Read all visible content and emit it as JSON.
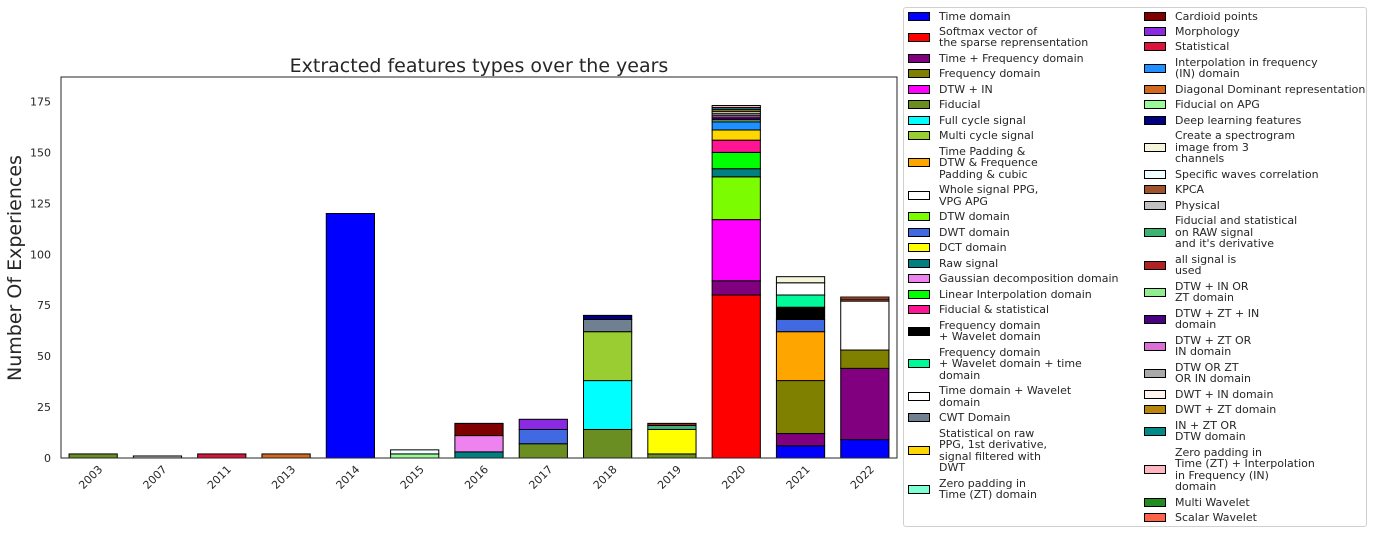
{
  "chart_data": {
    "type": "bar",
    "stacked": true,
    "title": "Extracted features types over the years",
    "xlabel": "",
    "ylabel": "Number Of Experiences",
    "ylim": [
      0,
      187
    ],
    "yticks": [
      0,
      25,
      50,
      75,
      100,
      125,
      150,
      175
    ],
    "categories": [
      "2003",
      "2007",
      "2011",
      "2013",
      "2014",
      "2015",
      "2016",
      "2017",
      "2018",
      "2019",
      "2020",
      "2021",
      "2022"
    ],
    "grid": false,
    "legend_position": "right",
    "series": [
      {
        "name": "Time domain",
        "color": "#0000ff",
        "values": [
          0,
          0,
          0,
          0,
          120,
          0,
          0,
          0,
          0,
          0,
          0,
          6,
          9
        ]
      },
      {
        "name": "Softmax vector of\nthe sparse reprensentation",
        "color": "#ff0000",
        "values": [
          0,
          0,
          0,
          0,
          0,
          0,
          0,
          0,
          0,
          0,
          80,
          0,
          0
        ]
      },
      {
        "name": "Time + Frequency domain",
        "color": "#800080",
        "values": [
          0,
          0,
          0,
          0,
          0,
          0,
          0,
          0,
          0,
          0,
          7,
          6,
          35
        ]
      },
      {
        "name": "Frequency domain",
        "color": "#808000",
        "values": [
          0,
          0,
          0,
          0,
          0,
          0,
          0,
          0,
          0,
          0,
          0,
          26,
          9
        ]
      },
      {
        "name": "DTW + IN",
        "color": "#ff00ff",
        "values": [
          0,
          0,
          0,
          0,
          0,
          0,
          0,
          0,
          0,
          0,
          30,
          0,
          0
        ]
      },
      {
        "name": "Fiducial",
        "color": "#6b8e23",
        "values": [
          2,
          0,
          0,
          0,
          0,
          0,
          0,
          7,
          14,
          2,
          0,
          0,
          0
        ]
      },
      {
        "name": "Full cycle signal",
        "color": "#00ffff",
        "values": [
          0,
          0,
          0,
          0,
          0,
          0,
          0,
          0,
          24,
          0,
          0,
          0,
          0
        ]
      },
      {
        "name": "Multi cycle signal",
        "color": "#9acd32",
        "values": [
          0,
          0,
          0,
          0,
          0,
          0,
          0,
          0,
          24,
          0,
          0,
          0,
          0
        ]
      },
      {
        "name": "Time Padding &\nDTW & Frequence\nPadding & cubic",
        "color": "#ffa500",
        "values": [
          0,
          0,
          0,
          0,
          0,
          0,
          0,
          0,
          0,
          0,
          0,
          24,
          0
        ]
      },
      {
        "name": "Whole signal PPG,\nVPG APG",
        "color": "#ffffff",
        "values": [
          0,
          0,
          0,
          0,
          0,
          0,
          0,
          0,
          0,
          0,
          0,
          0,
          24
        ]
      },
      {
        "name": "DTW domain",
        "color": "#7cfc00",
        "values": [
          0,
          0,
          0,
          0,
          0,
          0,
          0,
          0,
          0,
          0,
          21,
          0,
          0
        ]
      },
      {
        "name": "DWT domain",
        "color": "#4169e1",
        "values": [
          0,
          0,
          0,
          0,
          0,
          0,
          0,
          7,
          0,
          0,
          0,
          6,
          0
        ]
      },
      {
        "name": "DCT domain",
        "color": "#ffff00",
        "values": [
          0,
          0,
          0,
          0,
          0,
          0,
          0,
          0,
          0,
          12,
          0,
          0,
          0
        ]
      },
      {
        "name": "Raw signal",
        "color": "#008080",
        "values": [
          0,
          0,
          0,
          0,
          0,
          0,
          3,
          0,
          0,
          0,
          4,
          0,
          0
        ]
      },
      {
        "name": "Gaussian decomposition domain",
        "color": "#ee82ee",
        "values": [
          0,
          0,
          0,
          0,
          0,
          0,
          8,
          0,
          0,
          0,
          0,
          0,
          0
        ]
      },
      {
        "name": "Linear Interpolation domain",
        "color": "#00ff00",
        "values": [
          0,
          0,
          0,
          0,
          0,
          0,
          0,
          0,
          0,
          0,
          8,
          0,
          0
        ]
      },
      {
        "name": "Fiducial & statistical",
        "color": "#ff1493",
        "values": [
          0,
          0,
          0,
          0,
          0,
          0,
          0,
          0,
          0,
          0,
          6,
          0,
          0
        ]
      },
      {
        "name": "Frequency  domain\n+ Wavelet domain",
        "color": "#000000",
        "values": [
          0,
          0,
          0,
          0,
          0,
          0,
          0,
          0,
          0,
          0,
          0,
          6,
          0
        ]
      },
      {
        "name": "Frequency  domain\n+ Wavelet domain + time\ndomain",
        "color": "#00fa9a",
        "values": [
          0,
          0,
          0,
          0,
          0,
          0,
          0,
          0,
          0,
          0,
          0,
          6,
          0
        ]
      },
      {
        "name": "Time domain + Wavelet\ndomain",
        "color": "#ffffff",
        "values": [
          0,
          0,
          0,
          0,
          0,
          0,
          0,
          0,
          0,
          0,
          0,
          6,
          0
        ]
      },
      {
        "name": "CWT Domain",
        "color": "#708090",
        "values": [
          0,
          0,
          0,
          0,
          0,
          0,
          0,
          0,
          6,
          0,
          0,
          0,
          0
        ]
      },
      {
        "name": "Statistical on raw\nPPG, 1st derivative,\nsignal filtered with\nDWT",
        "color": "#ffd700",
        "values": [
          0,
          0,
          0,
          0,
          0,
          0,
          0,
          0,
          0,
          0,
          5,
          0,
          0
        ]
      },
      {
        "name": "Zero padding in\nTime (ZT) domain",
        "color": "#7fffd4",
        "values": [
          0,
          0,
          0,
          0,
          0,
          0,
          0,
          0,
          0,
          0,
          0,
          0,
          0
        ]
      },
      {
        "name": "Cardioid points",
        "color": "#800000",
        "values": [
          0,
          0,
          0,
          0,
          0,
          0,
          6,
          0,
          0,
          0,
          0,
          0,
          0
        ]
      },
      {
        "name": "Morphology",
        "color": "#8a2be2",
        "values": [
          0,
          0,
          0,
          0,
          0,
          0,
          0,
          5,
          0,
          0,
          0,
          0,
          0
        ]
      },
      {
        "name": "Statistical",
        "color": "#dc143c",
        "values": [
          0,
          0,
          2,
          0,
          0,
          0,
          0,
          0,
          0,
          0,
          0,
          0,
          0
        ]
      },
      {
        "name": "Interpolation in frequency\n(IN) domain",
        "color": "#1e90ff",
        "values": [
          0,
          0,
          0,
          0,
          0,
          0,
          0,
          0,
          0,
          0,
          4,
          0,
          0
        ]
      },
      {
        "name": "Diagonal Dominant representation",
        "color": "#d2691e",
        "values": [
          0,
          0,
          0,
          2,
          0,
          0,
          0,
          0,
          0,
          0,
          0,
          0,
          0
        ]
      },
      {
        "name": "Fiducial on APG",
        "color": "#98fb98",
        "values": [
          0,
          0,
          0,
          0,
          0,
          2,
          0,
          0,
          0,
          0,
          0,
          0,
          0
        ]
      },
      {
        "name": "Deep learning features",
        "color": "#000080",
        "values": [
          0,
          0,
          0,
          0,
          0,
          0,
          0,
          0,
          2,
          0,
          0,
          0,
          0
        ]
      },
      {
        "name": "Create a spectrogram\nimage from 3\nchannels",
        "color": "#f5f5dc",
        "values": [
          0,
          0,
          0,
          0,
          0,
          0,
          0,
          0,
          0,
          0,
          0,
          3,
          0
        ]
      },
      {
        "name": "Specific waves correlation",
        "color": "#f0ffff",
        "values": [
          0,
          0,
          0,
          0,
          0,
          2,
          0,
          0,
          0,
          0,
          0,
          0,
          0
        ]
      },
      {
        "name": "KPCA",
        "color": "#a0522d",
        "values": [
          0,
          0,
          0,
          0,
          0,
          0,
          0,
          0,
          0,
          0,
          0,
          0,
          1
        ]
      },
      {
        "name": "Physical",
        "color": "#c0c0c0",
        "values": [
          0,
          1,
          0,
          0,
          0,
          0,
          0,
          0,
          0,
          0,
          0,
          0,
          0
        ]
      },
      {
        "name": "Fiducial and statistical\non RAW signal\nand it's derivative",
        "color": "#3cb371",
        "values": [
          0,
          0,
          0,
          0,
          0,
          0,
          0,
          0,
          0,
          2,
          0,
          0,
          0
        ]
      },
      {
        "name": "all signal is\nused",
        "color": "#b22222",
        "values": [
          0,
          0,
          0,
          0,
          0,
          0,
          0,
          0,
          0,
          1,
          0,
          0,
          0
        ]
      },
      {
        "name": "DTW + IN OR\nZT domain",
        "color": "#90ee90",
        "values": [
          0,
          0,
          0,
          0,
          0,
          0,
          0,
          0,
          0,
          0,
          1,
          0,
          0
        ]
      },
      {
        "name": "DTW + ZT + IN\ndomain",
        "color": "#4b0082",
        "values": [
          0,
          0,
          0,
          0,
          0,
          0,
          0,
          0,
          0,
          0,
          1,
          0,
          0
        ]
      },
      {
        "name": "DTW + ZT OR\nIN domain",
        "color": "#da70d6",
        "values": [
          0,
          0,
          0,
          0,
          0,
          0,
          0,
          0,
          0,
          0,
          1,
          0,
          0
        ]
      },
      {
        "name": "DTW OR ZT\nOR IN domain",
        "color": "#a9a9a9",
        "values": [
          0,
          0,
          0,
          0,
          0,
          0,
          0,
          0,
          0,
          0,
          1,
          0,
          0
        ]
      },
      {
        "name": "DWT + IN domain",
        "color": "#fff5ee",
        "values": [
          0,
          0,
          0,
          0,
          0,
          0,
          0,
          0,
          0,
          0,
          1,
          0,
          0
        ]
      },
      {
        "name": "DWT + ZT domain",
        "color": "#b8860b",
        "values": [
          0,
          0,
          0,
          0,
          0,
          0,
          0,
          0,
          0,
          0,
          1,
          0,
          0
        ]
      },
      {
        "name": "IN + ZT OR\nDTW domain",
        "color": "#008b8b",
        "values": [
          0,
          0,
          0,
          0,
          0,
          0,
          0,
          0,
          0,
          0,
          1,
          0,
          0
        ]
      },
      {
        "name": "Zero padding in\nTime (ZT) + Interpolation\nin Frequency (IN)\ndomain",
        "color": "#ffb6c1",
        "values": [
          0,
          0,
          0,
          0,
          0,
          0,
          0,
          0,
          0,
          0,
          1,
          0,
          0
        ]
      },
      {
        "name": "Multi Wavelet",
        "color": "#228b22",
        "values": [
          0,
          0,
          0,
          0,
          0,
          0,
          0,
          0,
          0,
          0,
          0,
          0,
          0
        ]
      },
      {
        "name": "Scalar Wavelet",
        "color": "#ff6347",
        "values": [
          0,
          0,
          0,
          0,
          0,
          0,
          0,
          0,
          0,
          0,
          0,
          0,
          1
        ]
      }
    ]
  }
}
